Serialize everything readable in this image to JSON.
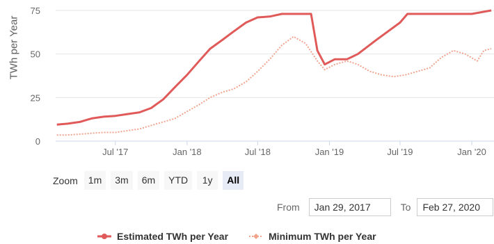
{
  "chart_data": {
    "type": "line",
    "ylabel": "TWh per Year",
    "ylim": [
      0,
      75
    ],
    "yticks": [
      0,
      25,
      50,
      75
    ],
    "xlim": [
      "2017-01-29",
      "2020-02-27"
    ],
    "xticks": [
      {
        "date": "2017-07-01",
        "label": "Jul '17"
      },
      {
        "date": "2018-01-01",
        "label": "Jan '18"
      },
      {
        "date": "2018-07-01",
        "label": "Jul '18"
      },
      {
        "date": "2019-01-01",
        "label": "Jan '19"
      },
      {
        "date": "2019-07-01",
        "label": "Jul '19"
      },
      {
        "date": "2020-01-01",
        "label": "Jan '20"
      }
    ],
    "legend_position": "bottom-center",
    "series": [
      {
        "name": "Estimated TWh per Year",
        "color": "#e05a5a",
        "style": "solid",
        "points": [
          [
            "2017-02-01",
            9.5
          ],
          [
            "2017-03-01",
            10
          ],
          [
            "2017-04-01",
            11
          ],
          [
            "2017-05-01",
            13
          ],
          [
            "2017-06-01",
            14
          ],
          [
            "2017-07-01",
            14.5
          ],
          [
            "2017-08-01",
            15.5
          ],
          [
            "2017-09-01",
            16.5
          ],
          [
            "2017-10-01",
            19
          ],
          [
            "2017-11-01",
            24
          ],
          [
            "2017-12-01",
            31
          ],
          [
            "2018-01-01",
            38
          ],
          [
            "2018-02-01",
            46
          ],
          [
            "2018-03-01",
            53
          ],
          [
            "2018-04-01",
            58
          ],
          [
            "2018-05-01",
            63
          ],
          [
            "2018-06-01",
            68
          ],
          [
            "2018-07-01",
            71
          ],
          [
            "2018-08-01",
            71.5
          ],
          [
            "2018-09-01",
            73
          ],
          [
            "2018-10-01",
            73
          ],
          [
            "2018-11-15",
            73
          ],
          [
            "2018-11-25",
            60
          ],
          [
            "2018-12-01",
            52
          ],
          [
            "2018-12-20",
            44
          ],
          [
            "2019-01-15",
            47
          ],
          [
            "2019-02-15",
            47
          ],
          [
            "2019-03-15",
            50
          ],
          [
            "2019-05-01",
            58
          ],
          [
            "2019-07-01",
            68
          ],
          [
            "2019-07-20",
            73
          ],
          [
            "2019-09-01",
            73
          ],
          [
            "2019-11-01",
            73
          ],
          [
            "2020-01-01",
            73
          ],
          [
            "2020-02-20",
            75
          ]
        ]
      },
      {
        "name": "Minimum TWh per Year",
        "color": "#f0a48e",
        "style": "dotted",
        "points": [
          [
            "2017-02-01",
            3.5
          ],
          [
            "2017-03-01",
            3.5
          ],
          [
            "2017-04-01",
            4
          ],
          [
            "2017-05-01",
            4.5
          ],
          [
            "2017-06-01",
            5
          ],
          [
            "2017-07-01",
            5
          ],
          [
            "2017-08-01",
            6
          ],
          [
            "2017-09-01",
            7
          ],
          [
            "2017-10-01",
            9
          ],
          [
            "2017-11-01",
            11
          ],
          [
            "2017-12-01",
            13
          ],
          [
            "2018-01-01",
            17
          ],
          [
            "2018-02-01",
            21
          ],
          [
            "2018-03-01",
            25
          ],
          [
            "2018-04-01",
            28
          ],
          [
            "2018-05-01",
            30
          ],
          [
            "2018-06-01",
            34
          ],
          [
            "2018-07-01",
            40
          ],
          [
            "2018-08-01",
            47
          ],
          [
            "2018-09-01",
            55
          ],
          [
            "2018-10-01",
            60
          ],
          [
            "2018-11-01",
            56
          ],
          [
            "2018-12-01",
            46
          ],
          [
            "2018-12-20",
            41
          ],
          [
            "2019-01-15",
            44
          ],
          [
            "2019-02-15",
            46
          ],
          [
            "2019-03-15",
            44
          ],
          [
            "2019-04-15",
            40
          ],
          [
            "2019-05-15",
            38
          ],
          [
            "2019-06-15",
            37
          ],
          [
            "2019-07-15",
            38
          ],
          [
            "2019-08-15",
            40
          ],
          [
            "2019-09-15",
            42
          ],
          [
            "2019-10-15",
            48
          ],
          [
            "2019-11-15",
            52
          ],
          [
            "2019-12-15",
            50
          ],
          [
            "2020-01-15",
            46
          ],
          [
            "2020-02-01",
            52
          ],
          [
            "2020-02-20",
            53
          ]
        ]
      }
    ]
  },
  "zoom": {
    "label": "Zoom",
    "buttons": [
      "1m",
      "3m",
      "6m",
      "YTD",
      "1y",
      "All"
    ],
    "active": "All"
  },
  "range": {
    "from_label": "From",
    "from_value": "Jan 29, 2017",
    "to_label": "To",
    "to_value": "Feb 27, 2020"
  }
}
